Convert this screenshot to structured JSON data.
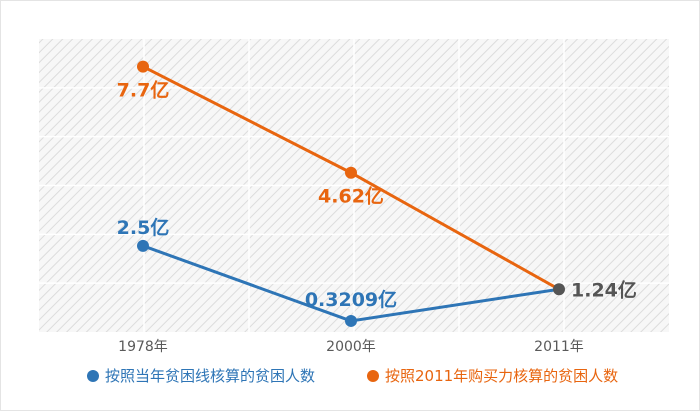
{
  "chart_data": {
    "type": "line",
    "categories": [
      "1978年",
      "2000年",
      "2011年"
    ],
    "x": [
      1978,
      2000,
      2011
    ],
    "series": [
      {
        "name": "按照当年贫困线核算的贫困人数",
        "values": [
          2.5,
          0.3209,
          1.24
        ],
        "labels": [
          "2.5亿",
          "0.3209亿",
          ""
        ],
        "color": "#2e75b6"
      },
      {
        "name": "按照2011年购买力核算的贫困人数",
        "values": [
          7.7,
          4.62,
          1.24
        ],
        "labels": [
          "7.7亿",
          "4.62亿",
          ""
        ],
        "color": "#e8650f"
      }
    ],
    "shared_label": "1.24亿",
    "shared_color": "#555555",
    "ylim": [
      0,
      8.5
    ],
    "grid": true,
    "legend_position": "bottom",
    "title": "",
    "xlabel": "",
    "ylabel": ""
  }
}
